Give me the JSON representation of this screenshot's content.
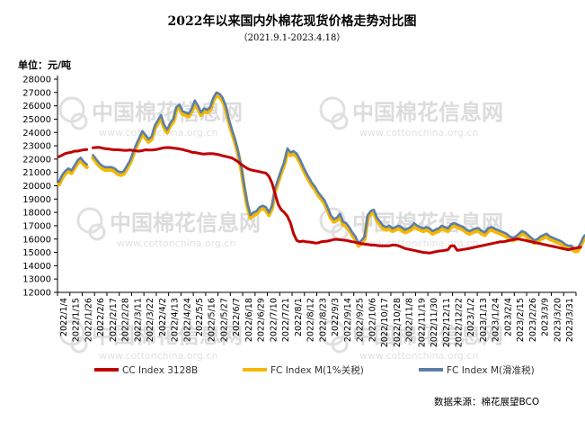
{
  "chart_data": {
    "type": "line",
    "title": "2022年以来国内外棉花现货价格走势对比图",
    "subtitle": "（2021.9.1-2023.4.18）",
    "ylabel": "单位：元/吨",
    "ylim": [
      12000,
      28000
    ],
    "ystep": 1000,
    "grid": false,
    "legend_position": "bottom",
    "source": "数据来源：棉花展望BCO",
    "watermark": {
      "main": "中国棉花信息网",
      "url": "www.cottonchina.org.cn"
    },
    "categories": [
      "2022/1/4",
      "2022/1/15",
      "2022/1/26",
      "2022/2/6",
      "2022/2/17",
      "2022/2/28",
      "2022/3/11",
      "2022/3/22",
      "2022/4/2",
      "2022/4/13",
      "2022/4/24",
      "2022/5/5",
      "2022/5/16",
      "2022/5/27",
      "2022/6/7",
      "2022/6/18",
      "2022/6/29",
      "2022/7/10",
      "2022/7/21",
      "2022/8/1",
      "2022/8/12",
      "2022/8/23",
      "2022/9/3",
      "2022/9/14",
      "2022/9/25",
      "2022/10/6",
      "2022/10/17",
      "2022/10/28",
      "2022/11/8",
      "2022/11/19",
      "2022/11/30",
      "2022/12/11",
      "2022/12/22",
      "2023/1/2",
      "2023/1/13",
      "2023/1/24",
      "2023/2/4",
      "2023/2/15",
      "2023/2/26",
      "2023/3/9",
      "2023/3/20",
      "2023/3/31"
    ],
    "series": [
      {
        "name": "CC Index 3128B",
        "color": "#c00000",
        "segments": [
          {
            "start": 0,
            "values": [
              22180,
              22300,
              22420,
              22480,
              22520,
              22600,
              22600,
              22650,
              22700,
              22720
            ]
          },
          {
            "start": 11,
            "values": [
              22850,
              22870,
              22880,
              22830,
              22780,
              22760,
              22730,
              22700,
              22700,
              22680,
              22660,
              22660,
              22680,
              22650,
              22620,
              22600,
              22640,
              22700,
              22680,
              22680,
              22700,
              22750,
              22800,
              22850,
              22870,
              22860,
              22830,
              22800,
              22760,
              22720,
              22650,
              22600,
              22520,
              22500,
              22450,
              22400,
              22380,
              22400,
              22420,
              22400,
              22360,
              22320,
              22250,
              22200,
              22150,
              22080,
              21950,
              21800,
              21600,
              21450,
              21300,
              21200,
              21150,
              21100,
              21050,
              21000,
              20950,
              20700,
              20200,
              19400,
              18600,
              18200,
              18000,
              17700,
              17200,
              16400,
              15900,
              15800,
              15850,
              15800,
              15780,
              15750,
              15700,
              15720,
              15800,
              15820,
              15850,
              15900,
              15960,
              15980,
              15950,
              15920,
              15900,
              15850,
              15800,
              15760,
              15700,
              15650,
              15620,
              15600,
              15550,
              15550,
              15520,
              15500,
              15500,
              15500,
              15500,
              15550,
              15550,
              15500,
              15400,
              15300,
              15250,
              15200,
              15150,
              15100,
              15050,
              15000,
              14980,
              14950,
              15000,
              15050,
              15100,
              15120,
              15150,
              15200,
              15500,
              15500,
              15150,
              15180,
              15220,
              15260,
              15300,
              15350,
              15400,
              15450,
              15500,
              15550,
              15600,
              15650,
              15700,
              15750,
              15800,
              15800,
              15850,
              15900,
              15950,
              16000,
              16000,
              15950,
              15900,
              15850,
              15800,
              15750,
              15700,
              15650,
              15600,
              15550,
              15500,
              15450,
              15400,
              15350,
              15300,
              15250,
              15200,
              15250,
              15300,
              15350,
              15380
            ]
          }
        ]
      },
      {
        "name": "FC Index M(1%关税)",
        "color": "#f5b800",
        "segments": [
          {
            "start": 0,
            "values": [
              20100,
              20600,
              20900,
              21100,
              20950,
              21300,
              21700,
              21900,
              21600,
              21400
            ]
          },
          {
            "start": 11,
            "values": [
              22100,
              21800,
              21500,
              21300,
              21200,
              21200,
              21200,
              21100,
              20900,
              20800,
              20900,
              21300,
              21700,
              22300,
              22900,
              23400,
              23900,
              23600,
              23300,
              23500,
              24300,
              24700,
              25100,
              24400,
              24000,
              24500,
              24800,
              25700,
              25900,
              25400,
              25300,
              25200,
              25600,
              26200,
              25800,
              25300,
              25600,
              25500,
              25700,
              26400,
              26800,
              26700,
              26400,
              25800,
              24800,
              24000,
              23300,
              22400,
              21300,
              19800,
              18500,
              17600,
              17800,
              17900,
              18200,
              18300,
              18200,
              17800,
              18300,
              19600,
              20300,
              21000,
              21600,
              22600,
              22300,
              22400,
              22200,
              21800,
              21300,
              20800,
              20400,
              20000,
              19700,
              19300,
              19000,
              18700,
              18200,
              17600,
              17300,
              17400,
              17700,
              17100,
              17000,
              16700,
              16300,
              16000,
              15500,
              15700,
              16000,
              17600,
              17900,
              18000,
              17400,
              17100,
              16800,
              16700,
              16800,
              16600,
              16700,
              16800,
              16700,
              16500,
              16600,
              16700,
              17000,
              16800,
              16700,
              16600,
              16700,
              16600,
              16400,
              16500,
              16600,
              16800,
              16700,
              16600,
              16900,
              17000,
              16900,
              16800,
              16700,
              16500,
              16400,
              16500,
              16600,
              16600,
              16400,
              16300,
              16600,
              16700,
              16600,
              16500,
              16400,
              16300,
              16200,
              16000,
              15900,
              16000,
              16200,
              16400,
              16300,
              16100,
              15900,
              15700,
              15800,
              16000,
              16100,
              16200,
              16000,
              15900,
              15800,
              15700,
              15600,
              15400,
              15300,
              15300,
              15100,
              15100,
              15500,
              16000,
              16200
            ]
          }
        ]
      },
      {
        "name": "FC Index M(滑准税)",
        "color": "#5b7fa8",
        "segments": [
          {
            "start": 0,
            "values": [
              20300,
              20800,
              21100,
              21300,
              21150,
              21500,
              21900,
              22100,
              21800,
              21600
            ]
          },
          {
            "start": 11,
            "values": [
              22300,
              22000,
              21700,
              21500,
              21400,
              21400,
              21400,
              21300,
              21100,
              21000,
              21100,
              21500,
              21900,
              22500,
              23100,
              23600,
              24100,
              23800,
              23500,
              23700,
              24500,
              24900,
              25300,
              24600,
              24200,
              24700,
              25000,
              25900,
              26100,
              25600,
              25500,
              25400,
              25800,
              26400,
              26000,
              25500,
              25800,
              25700,
              25900,
              26600,
              27000,
              26900,
              26600,
              26000,
              25000,
              24200,
              23500,
              22600,
              21500,
              20000,
              18700,
              17800,
              18000,
              18100,
              18400,
              18500,
              18400,
              18000,
              18500,
              19800,
              20500,
              21200,
              21800,
              22800,
              22500,
              22600,
              22400,
              22000,
              21500,
              21000,
              20600,
              20200,
              19900,
              19500,
              19200,
              18900,
              18400,
              17800,
              17500,
              17600,
              17900,
              17300,
              17200,
              16900,
              16500,
              16200,
              15700,
              15900,
              16200,
              17800,
              18100,
              18200,
              17600,
              17300,
              17000,
              16900,
              17000,
              16800,
              16900,
              17000,
              16900,
              16700,
              16800,
              16900,
              17200,
              17000,
              16900,
              16800,
              16900,
              16800,
              16600,
              16700,
              16800,
              17000,
              16900,
              16800,
              17100,
              17200,
              17100,
              17000,
              16900,
              16700,
              16600,
              16700,
              16800,
              16800,
              16600,
              16500,
              16800,
              16900,
              16800,
              16700,
              16600,
              16500,
              16400,
              16200,
              16100,
              16200,
              16400,
              16600,
              16500,
              16300,
              16100,
              15900,
              16000,
              16200,
              16300,
              16400,
              16200,
              16100,
              16000,
              15900,
              15800,
              15600,
              15500,
              15500,
              15300,
              15300,
              15700,
              16200,
              16400
            ]
          }
        ]
      }
    ]
  }
}
